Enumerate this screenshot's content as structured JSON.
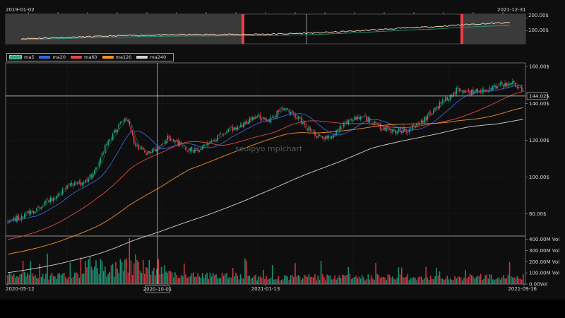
{
  "overview": {
    "start_label": "2019-01-02",
    "end_label": "2021-12-31",
    "y_ticks": [
      "200.00$",
      "100.00$"
    ]
  },
  "legend": [
    {
      "label": "ma5",
      "color": "#2ea58a"
    },
    {
      "label": "ma20",
      "color": "#3366dd"
    },
    {
      "label": "ma60",
      "color": "#e04848"
    },
    {
      "label": "ma120",
      "color": "#f09030"
    },
    {
      "label": "ma240",
      "color": "#d0d0d0"
    }
  ],
  "watermark": "seolpyo mplchart",
  "crosshair": {
    "price_label": "144.02$",
    "date_label": "2020-10-01"
  },
  "colors": {
    "up": "#1ea885",
    "down": "#e8404a",
    "background": "#0e0e0e",
    "grid": "#2a2a2a",
    "text": "#d8d8d8"
  },
  "chart_data": {
    "type": "candlestick",
    "x_range": [
      "2020-05-12",
      "2021-09-16"
    ],
    "x_tick_labels": [
      "2020-05-12",
      "2021-01-13",
      "2021-09-16"
    ],
    "price_axis": {
      "unit": "$",
      "ylim": [
        68,
        162
      ],
      "ticks": [
        80,
        100,
        120,
        140,
        160
      ],
      "tick_labels": [
        "80.00$",
        "100.00$",
        "120.00$",
        "140.00$",
        "160.00$"
      ]
    },
    "volume_axis": {
      "unit": "Vol",
      "ylim": [
        0,
        430
      ],
      "ticks": [
        0,
        100,
        200,
        300,
        400
      ],
      "tick_labels": [
        "0.00Vol",
        "100.00M Vol",
        "200.00M Vol",
        "300.00M Vol",
        "400.00M Vol"
      ]
    },
    "close_path": [
      {
        "t": 0.0,
        "p": 76
      },
      {
        "t": 0.03,
        "p": 79
      },
      {
        "t": 0.06,
        "p": 83
      },
      {
        "t": 0.09,
        "p": 89
      },
      {
        "t": 0.12,
        "p": 96
      },
      {
        "t": 0.15,
        "p": 97
      },
      {
        "t": 0.17,
        "p": 104
      },
      {
        "t": 0.19,
        "p": 117
      },
      {
        "t": 0.21,
        "p": 126
      },
      {
        "t": 0.23,
        "p": 133
      },
      {
        "t": 0.245,
        "p": 118
      },
      {
        "t": 0.27,
        "p": 113
      },
      {
        "t": 0.29,
        "p": 116
      },
      {
        "t": 0.31,
        "p": 122
      },
      {
        "t": 0.33,
        "p": 118
      },
      {
        "t": 0.36,
        "p": 114
      },
      {
        "t": 0.39,
        "p": 118
      },
      {
        "t": 0.42,
        "p": 124
      },
      {
        "t": 0.45,
        "p": 128
      },
      {
        "t": 0.48,
        "p": 133
      },
      {
        "t": 0.51,
        "p": 131
      },
      {
        "t": 0.53,
        "p": 138
      },
      {
        "t": 0.56,
        "p": 133
      },
      {
        "t": 0.58,
        "p": 127
      },
      {
        "t": 0.6,
        "p": 121
      },
      {
        "t": 0.63,
        "p": 122
      },
      {
        "t": 0.66,
        "p": 131
      },
      {
        "t": 0.69,
        "p": 133
      },
      {
        "t": 0.72,
        "p": 127
      },
      {
        "t": 0.75,
        "p": 125
      },
      {
        "t": 0.78,
        "p": 126
      },
      {
        "t": 0.81,
        "p": 132
      },
      {
        "t": 0.84,
        "p": 140
      },
      {
        "t": 0.87,
        "p": 147
      },
      {
        "t": 0.9,
        "p": 146
      },
      {
        "t": 0.93,
        "p": 148
      },
      {
        "t": 0.96,
        "p": 150
      },
      {
        "t": 0.98,
        "p": 152
      },
      {
        "t": 1.0,
        "p": 146
      }
    ],
    "ma_end_values": {
      "ma20": 148,
      "ma60": 145,
      "ma120": 137,
      "ma240": 131
    },
    "overview_series": {
      "x_range": [
        "2019-01-02",
        "2021-12-31"
      ],
      "selection_x_range": [
        "2020-05-12",
        "2021-09-16"
      ],
      "ylim": [
        0,
        230
      ]
    }
  }
}
